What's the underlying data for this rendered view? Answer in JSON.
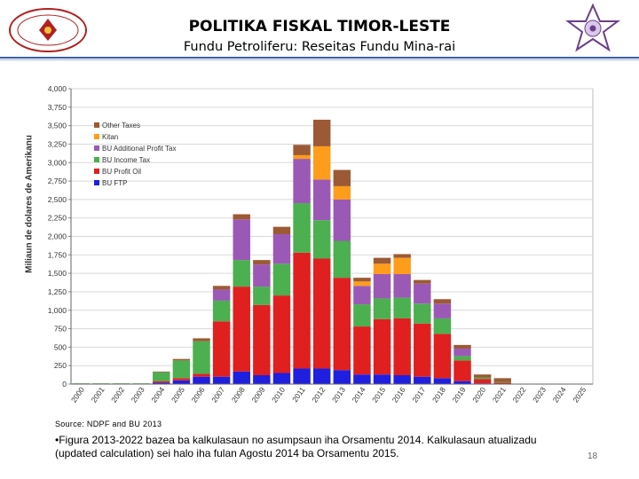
{
  "header": {
    "title": "POLITIKA FISKAL TIMOR-LESTE",
    "subtitle": "Fundu Petroliferu: Reseitas Fundu Mina-rai"
  },
  "footer": {
    "source": "Source: NDPF and BU 2013",
    "note": "•Figura 2013-2022 bazea ba kalkulasaun no asumpsaun iha Orsamentu 2014. Kalkulasaun atualizadu (updated calculation) sei halo iha fulan Agostu 2014 ba Orsamentu 2015.",
    "page_number": "18"
  },
  "chart_data": {
    "type": "bar",
    "stacked": true,
    "ylabel": "Miliaun de dolares de Amerikanu",
    "ylim": [
      0,
      4000
    ],
    "yticks": [
      0,
      250,
      500,
      750,
      1000,
      1250,
      1500,
      1750,
      2000,
      2250,
      2500,
      2750,
      3000,
      3250,
      3500,
      3750,
      4000
    ],
    "ytick_labels": [
      "0",
      "250",
      "500",
      "750",
      "1,000",
      "1,250",
      "1,500",
      "1,750",
      "2,000",
      "2,250",
      "2,500",
      "2,750",
      "3,000",
      "3,250",
      "3,500",
      "3,750",
      "4,000"
    ],
    "grid": true,
    "legend_position": "top-left",
    "categories": [
      "2000",
      "2001",
      "2002",
      "2003",
      "2004",
      "2005",
      "2006",
      "2007",
      "2008",
      "2009",
      "2010",
      "2011",
      "2012",
      "2013",
      "2014",
      "2015",
      "2016",
      "2017",
      "2018",
      "2019",
      "2020",
      "2021",
      "2022",
      "2023",
      "2024",
      "2025"
    ],
    "series": [
      {
        "name": "BU FTP",
        "color": "#1f1fe0",
        "values": [
          0,
          0,
          0,
          0,
          20,
          50,
          100,
          100,
          170,
          120,
          150,
          210,
          210,
          190,
          130,
          130,
          120,
          100,
          80,
          40,
          10,
          0,
          0,
          0,
          0,
          0
        ]
      },
      {
        "name": "BU Profit Oil",
        "color": "#e01f1f",
        "values": [
          0,
          0,
          0,
          0,
          20,
          30,
          40,
          750,
          1150,
          950,
          1050,
          1570,
          1490,
          1250,
          650,
          750,
          770,
          720,
          600,
          280,
          60,
          20,
          0,
          0,
          0,
          0
        ]
      },
      {
        "name": "BU Income Tax",
        "color": "#4caf50",
        "values": [
          10,
          10,
          10,
          10,
          120,
          240,
          440,
          280,
          360,
          250,
          430,
          670,
          520,
          500,
          300,
          280,
          280,
          270,
          210,
          60,
          20,
          10,
          0,
          0,
          0,
          0
        ]
      },
      {
        "name": "BU Additional Profit Tax",
        "color": "#9b59b6",
        "values": [
          0,
          0,
          0,
          0,
          0,
          0,
          0,
          150,
          550,
          300,
          400,
          600,
          550,
          560,
          250,
          330,
          320,
          270,
          200,
          100,
          0,
          0,
          0,
          0,
          0,
          0
        ]
      },
      {
        "name": "Kitan",
        "color": "#ff9c1a",
        "values": [
          0,
          0,
          0,
          0,
          0,
          0,
          0,
          0,
          0,
          0,
          0,
          50,
          450,
          180,
          60,
          140,
          220,
          0,
          0,
          0,
          0,
          0,
          0,
          0,
          0,
          0
        ]
      },
      {
        "name": "Other Taxes",
        "color": "#9c5a34",
        "values": [
          0,
          0,
          0,
          0,
          10,
          20,
          40,
          50,
          70,
          60,
          100,
          140,
          360,
          220,
          50,
          80,
          50,
          50,
          60,
          50,
          40,
          50,
          0,
          0,
          0,
          0
        ]
      }
    ]
  },
  "legend_order": [
    "Other Taxes",
    "Kitan",
    "BU Additional Profit Tax",
    "BU Income Tax",
    "BU Profit Oil",
    "BU FTP"
  ]
}
